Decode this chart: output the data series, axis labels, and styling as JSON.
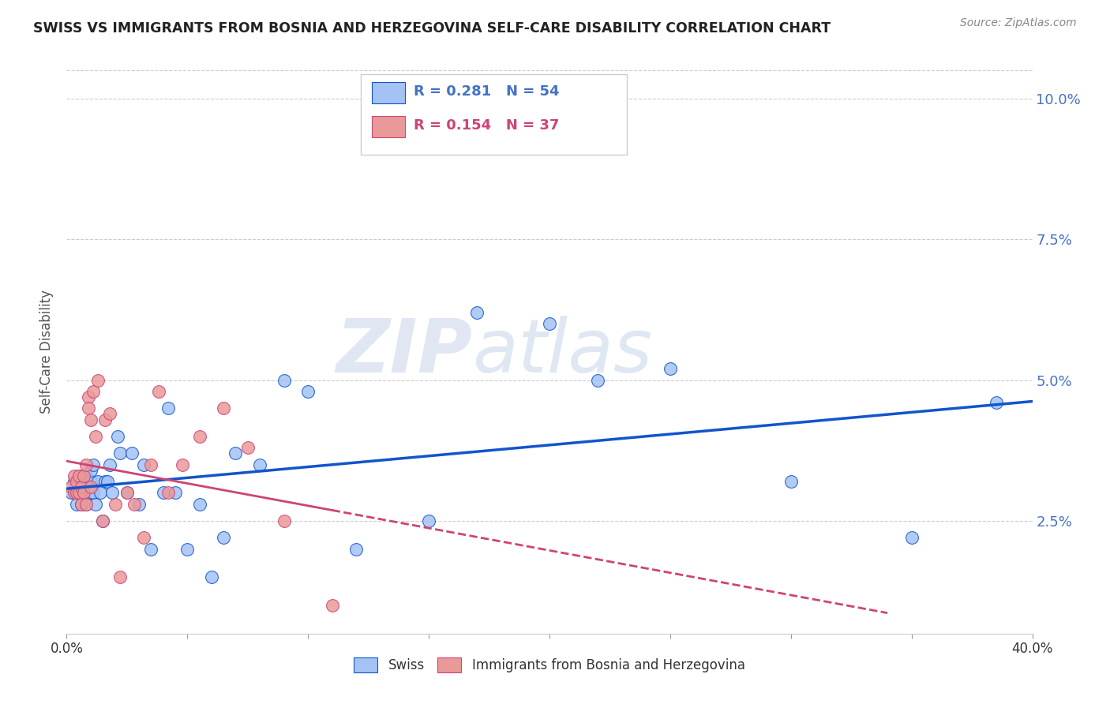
{
  "title": "SWISS VS IMMIGRANTS FROM BOSNIA AND HERZEGOVINA SELF-CARE DISABILITY CORRELATION CHART",
  "source": "Source: ZipAtlas.com",
  "ylabel": "Self-Care Disability",
  "legend_swiss_R": "0.281",
  "legend_swiss_N": "54",
  "legend_bh_R": "0.154",
  "legend_bh_N": "37",
  "legend_label_swiss": "Swiss",
  "legend_label_bh": "Immigrants from Bosnia and Herzegovina",
  "xmin": 0.0,
  "xmax": 0.4,
  "ymin": 0.005,
  "ymax": 0.105,
  "swiss_color": "#a4c2f4",
  "bh_color": "#ea9999",
  "swiss_line_color": "#1155cc",
  "bh_line_color": "#cc4477",
  "watermark_zip": "ZIP",
  "watermark_atlas": "atlas",
  "swiss_x": [
    0.002,
    0.003,
    0.004,
    0.004,
    0.005,
    0.005,
    0.006,
    0.006,
    0.007,
    0.007,
    0.008,
    0.008,
    0.009,
    0.009,
    0.01,
    0.01,
    0.01,
    0.011,
    0.011,
    0.012,
    0.013,
    0.014,
    0.015,
    0.016,
    0.017,
    0.018,
    0.019,
    0.021,
    0.022,
    0.025,
    0.027,
    0.03,
    0.032,
    0.035,
    0.04,
    0.042,
    0.045,
    0.05,
    0.055,
    0.06,
    0.065,
    0.07,
    0.08,
    0.09,
    0.1,
    0.12,
    0.15,
    0.17,
    0.2,
    0.22,
    0.25,
    0.3,
    0.35,
    0.385
  ],
  "swiss_y": [
    0.03,
    0.032,
    0.03,
    0.028,
    0.033,
    0.03,
    0.031,
    0.028,
    0.032,
    0.03,
    0.028,
    0.033,
    0.03,
    0.031,
    0.03,
    0.032,
    0.034,
    0.035,
    0.03,
    0.028,
    0.032,
    0.03,
    0.025,
    0.032,
    0.032,
    0.035,
    0.03,
    0.04,
    0.037,
    0.03,
    0.037,
    0.028,
    0.035,
    0.02,
    0.03,
    0.045,
    0.03,
    0.02,
    0.028,
    0.015,
    0.022,
    0.037,
    0.035,
    0.05,
    0.048,
    0.02,
    0.025,
    0.062,
    0.06,
    0.05,
    0.052,
    0.032,
    0.022,
    0.046
  ],
  "bh_x": [
    0.002,
    0.003,
    0.003,
    0.004,
    0.004,
    0.005,
    0.005,
    0.006,
    0.006,
    0.007,
    0.007,
    0.008,
    0.008,
    0.009,
    0.009,
    0.01,
    0.01,
    0.011,
    0.012,
    0.013,
    0.015,
    0.016,
    0.018,
    0.02,
    0.022,
    0.025,
    0.028,
    0.032,
    0.035,
    0.038,
    0.042,
    0.048,
    0.055,
    0.065,
    0.075,
    0.09,
    0.11
  ],
  "bh_y": [
    0.031,
    0.03,
    0.033,
    0.03,
    0.032,
    0.03,
    0.033,
    0.028,
    0.031,
    0.033,
    0.03,
    0.035,
    0.028,
    0.047,
    0.045,
    0.043,
    0.031,
    0.048,
    0.04,
    0.05,
    0.025,
    0.043,
    0.044,
    0.028,
    0.015,
    0.03,
    0.028,
    0.022,
    0.035,
    0.048,
    0.03,
    0.035,
    0.04,
    0.045,
    0.038,
    0.025,
    0.01
  ]
}
